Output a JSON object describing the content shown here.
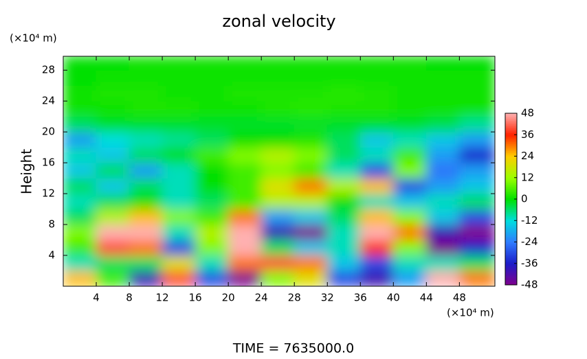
{
  "chart_data": {
    "type": "heatmap",
    "title": "zonal velocity",
    "y_label": "Height",
    "x_unit": "(×10⁴ m)",
    "y_unit": "(×10⁴ m)",
    "footer": "TIME = 7635000.0",
    "xlim": [
      0,
      52.3
    ],
    "ylim": [
      0,
      29.8
    ],
    "xticks": [
      4,
      8,
      12,
      16,
      20,
      24,
      28,
      32,
      36,
      40,
      44,
      48
    ],
    "yticks": [
      4,
      8,
      12,
      16,
      20,
      24,
      28
    ],
    "x": [
      2,
      6,
      10,
      14,
      18,
      22,
      26,
      30,
      34,
      38,
      42,
      46,
      50
    ],
    "y": [
      1,
      3,
      5,
      7,
      9,
      11,
      13,
      15,
      17,
      19,
      21,
      23,
      25,
      27,
      29
    ],
    "values": [
      [
        25,
        5,
        -40,
        40,
        -30,
        -48,
        10,
        20,
        -30,
        -40,
        -20,
        48,
        30
      ],
      [
        -10,
        -5,
        -5,
        20,
        -10,
        30,
        40,
        30,
        -15,
        -30,
        -10,
        -10,
        -5
      ],
      [
        5,
        40,
        30,
        -30,
        10,
        48,
        -5,
        -15,
        -10,
        35,
        10,
        -48,
        -35
      ],
      [
        10,
        48,
        48,
        -10,
        15,
        48,
        -40,
        -48,
        -10,
        48,
        30,
        -40,
        -48
      ],
      [
        -5,
        15,
        25,
        10,
        5,
        30,
        -20,
        -15,
        -5,
        25,
        10,
        -15,
        -30
      ],
      [
        -10,
        -5,
        0,
        -10,
        -5,
        5,
        15,
        15,
        0,
        -10,
        -15,
        -10,
        -5
      ],
      [
        -5,
        -15,
        -5,
        -10,
        0,
        5,
        20,
        30,
        15,
        25,
        -30,
        -20,
        -15
      ],
      [
        -15,
        -5,
        -20,
        -10,
        0,
        5,
        10,
        5,
        -10,
        -30,
        10,
        -25,
        -20
      ],
      [
        -10,
        -15,
        -5,
        0,
        5,
        10,
        15,
        10,
        -5,
        -10,
        5,
        -20,
        -35
      ],
      [
        -20,
        -12,
        -10,
        -8,
        -5,
        0,
        0,
        2,
        -5,
        -15,
        -10,
        -15,
        -20
      ],
      [
        -5,
        -2,
        -2,
        -2,
        -2,
        -2,
        -2,
        -2,
        -2,
        -2,
        -2,
        -4,
        -8
      ],
      [
        1,
        1,
        2,
        2,
        1,
        1,
        2,
        3,
        2,
        2,
        1,
        1,
        1
      ],
      [
        1,
        2,
        2,
        1,
        1,
        2,
        2,
        2,
        3,
        2,
        1,
        1,
        1
      ],
      [
        0,
        1,
        1,
        1,
        1,
        1,
        1,
        1,
        1,
        1,
        1,
        1,
        1
      ],
      [
        0,
        0,
        1,
        1,
        1,
        1,
        1,
        1,
        1,
        1,
        1,
        0,
        0
      ]
    ],
    "colorbar": {
      "ticks": [
        -48,
        -36,
        -24,
        -12,
        0,
        12,
        24,
        36,
        48
      ],
      "colors": [
        "#80008c",
        "#1c1cc8",
        "#2f7cff",
        "#00dede",
        "#00e000",
        "#9cff00",
        "#ffcc00",
        "#ff2200",
        "#ffb0b0"
      ]
    }
  }
}
